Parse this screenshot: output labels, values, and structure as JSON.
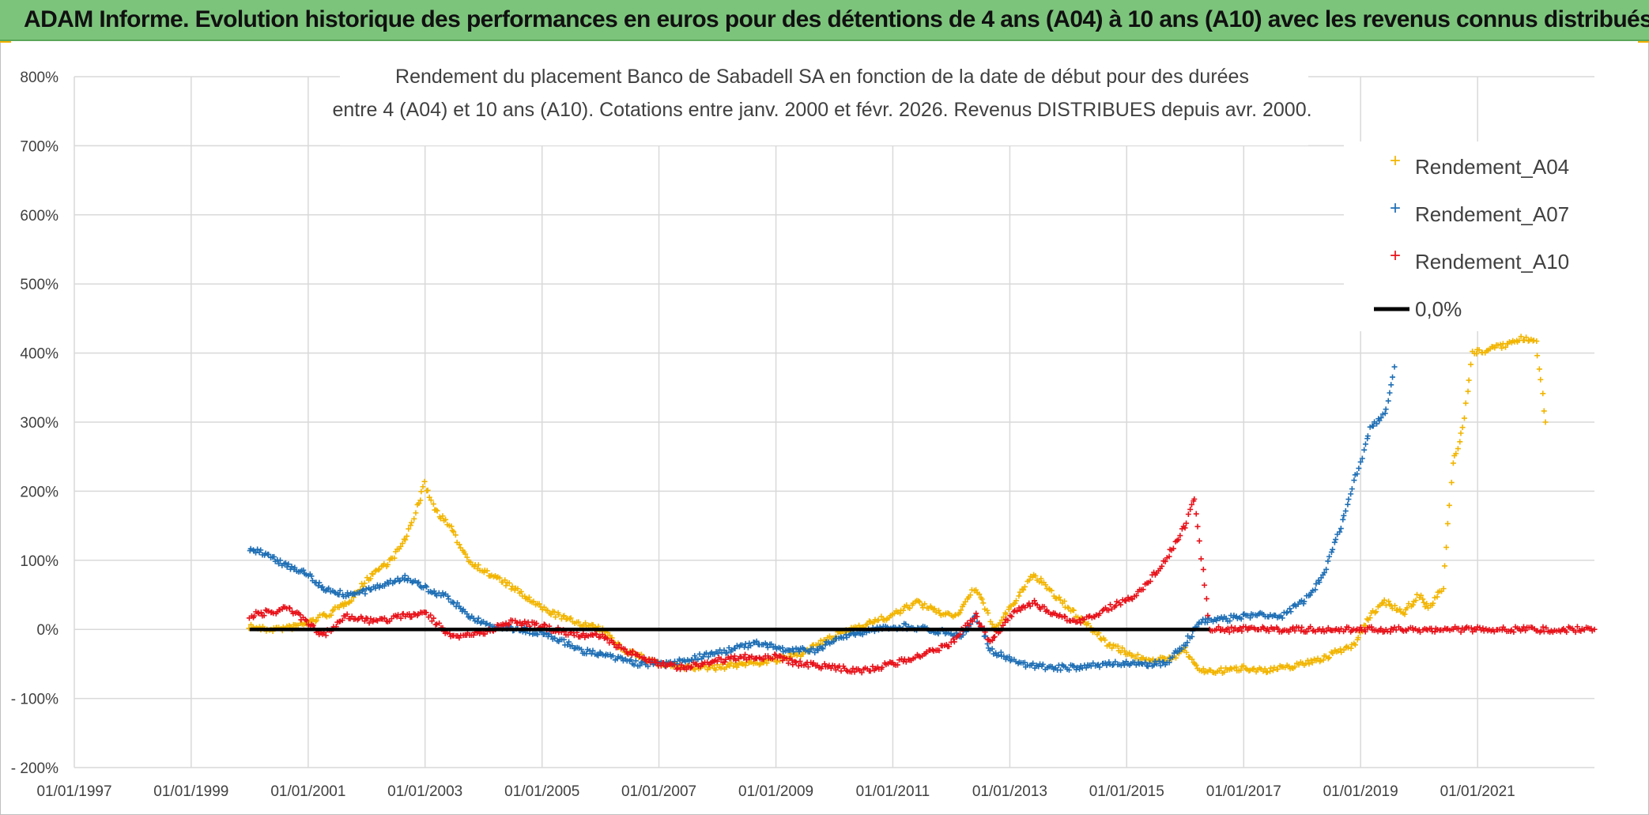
{
  "banner": {
    "text": "ADAM Informe. Evolution historique des performances en euros pour des détentions de 4 ans (A04) à 10 ans (A10) avec les revenus connus distribués"
  },
  "colors": {
    "banner_bg": "#7cc47c",
    "A04": "#f2b500",
    "A07": "#1f6fb5",
    "A10": "#e8131b",
    "zero_line": "#000000",
    "grid": "#d9d9d9"
  },
  "chart_data": {
    "type": "scatter",
    "title_lines": [
      "Rendement du placement Banco de Sabadell SA en fonction de la date de début pour des durées",
      "entre 4 (A04) et 10 ans (A10). Cotations entre janv. 2000 et févr. 2026. Revenus DISTRIBUES depuis avr. 2000."
    ],
    "x_axis": {
      "type": "date",
      "range": [
        "1997-01-01",
        "2023-01-01"
      ],
      "tick_labels": [
        "01/01/1997",
        "01/01/1999",
        "01/01/2001",
        "01/01/2003",
        "01/01/2005",
        "01/01/2007",
        "01/01/2009",
        "01/01/2011",
        "01/01/2013",
        "01/01/2015",
        "01/01/2017",
        "01/01/2019",
        "01/01/2021"
      ],
      "grid": true
    },
    "y_axis": {
      "range": [
        -200,
        800
      ],
      "unit": "%",
      "tick_labels": [
        "800%",
        "700%",
        "600%",
        "500%",
        "400%",
        "300%",
        "200%",
        "100%",
        "0%",
        "- 100%",
        "- 200%"
      ],
      "grid": true
    },
    "legend": {
      "position": "right",
      "entries": [
        "Rendement_A04",
        "Rendement_A07",
        "Rendement_A10",
        "0,0%"
      ]
    },
    "series": [
      {
        "name": "Rendement_A04",
        "marker": "+",
        "color": "#f2b500",
        "points": [
          [
            "2000-01-01",
            5
          ],
          [
            "2000-04-01",
            0
          ],
          [
            "2000-09-01",
            2
          ],
          [
            "2001-01-01",
            10
          ],
          [
            "2001-06-01",
            25
          ],
          [
            "2001-10-01",
            45
          ],
          [
            "2002-02-01",
            80
          ],
          [
            "2002-06-01",
            100
          ],
          [
            "2002-09-01",
            130
          ],
          [
            "2003-01-01",
            210
          ],
          [
            "2003-03-01",
            175
          ],
          [
            "2003-06-01",
            150
          ],
          [
            "2003-10-01",
            100
          ],
          [
            "2004-02-01",
            80
          ],
          [
            "2004-05-01",
            70
          ],
          [
            "2004-09-01",
            50
          ],
          [
            "2005-01-01",
            30
          ],
          [
            "2005-06-01",
            15
          ],
          [
            "2006-01-01",
            0
          ],
          [
            "2006-06-01",
            -30
          ],
          [
            "2007-01-01",
            -50
          ],
          [
            "2007-06-01",
            -55
          ],
          [
            "2008-01-01",
            -55
          ],
          [
            "2008-06-01",
            -50
          ],
          [
            "2009-01-01",
            -45
          ],
          [
            "2009-06-01",
            -35
          ],
          [
            "2010-01-01",
            -10
          ],
          [
            "2010-06-01",
            5
          ],
          [
            "2011-01-01",
            20
          ],
          [
            "2011-06-01",
            40
          ],
          [
            "2011-10-01",
            25
          ],
          [
            "2012-02-01",
            20
          ],
          [
            "2012-06-01",
            60
          ],
          [
            "2012-10-01",
            0
          ],
          [
            "2013-01-01",
            30
          ],
          [
            "2013-06-01",
            80
          ],
          [
            "2013-10-01",
            50
          ],
          [
            "2014-03-01",
            20
          ],
          [
            "2014-09-01",
            -20
          ],
          [
            "2015-03-01",
            -40
          ],
          [
            "2015-09-01",
            -45
          ],
          [
            "2016-01-01",
            -30
          ],
          [
            "2016-04-01",
            -60
          ],
          [
            "2016-09-01",
            -60
          ],
          [
            "2017-01-01",
            -55
          ],
          [
            "2017-06-01",
            -60
          ],
          [
            "2018-01-01",
            -50
          ],
          [
            "2018-06-01",
            -40
          ],
          [
            "2018-12-01",
            -20
          ],
          [
            "2019-03-01",
            20
          ],
          [
            "2019-06-01",
            40
          ],
          [
            "2019-10-01",
            25
          ],
          [
            "2020-01-01",
            50
          ],
          [
            "2020-03-01",
            30
          ],
          [
            "2020-06-01",
            60
          ],
          [
            "2020-08-01",
            240
          ],
          [
            "2020-10-01",
            290
          ],
          [
            "2020-12-01",
            400
          ],
          [
            "2021-06-01",
            410
          ],
          [
            "2021-10-01",
            420
          ],
          [
            "2022-01-01",
            420
          ],
          [
            "2022-03-01",
            300
          ]
        ]
      },
      {
        "name": "Rendement_A07",
        "marker": "+",
        "color": "#1f6fb5",
        "points": [
          [
            "2000-01-01",
            115
          ],
          [
            "2000-04-01",
            110
          ],
          [
            "2000-08-01",
            95
          ],
          [
            "2001-01-01",
            80
          ],
          [
            "2001-04-01",
            60
          ],
          [
            "2001-09-01",
            50
          ],
          [
            "2002-01-01",
            55
          ],
          [
            "2002-06-01",
            70
          ],
          [
            "2002-09-01",
            75
          ],
          [
            "2003-01-01",
            60
          ],
          [
            "2003-06-01",
            45
          ],
          [
            "2003-10-01",
            20
          ],
          [
            "2004-02-01",
            5
          ],
          [
            "2004-09-01",
            0
          ],
          [
            "2005-03-01",
            -10
          ],
          [
            "2005-09-01",
            -30
          ],
          [
            "2006-03-01",
            -40
          ],
          [
            "2006-09-01",
            -50
          ],
          [
            "2007-03-01",
            -50
          ],
          [
            "2007-09-01",
            -40
          ],
          [
            "2008-03-01",
            -30
          ],
          [
            "2008-09-01",
            -20
          ],
          [
            "2009-03-01",
            -30
          ],
          [
            "2009-09-01",
            -30
          ],
          [
            "2010-03-01",
            -10
          ],
          [
            "2010-09-01",
            0
          ],
          [
            "2011-03-01",
            5
          ],
          [
            "2011-09-01",
            0
          ],
          [
            "2012-03-01",
            -10
          ],
          [
            "2012-06-01",
            20
          ],
          [
            "2012-09-01",
            -30
          ],
          [
            "2013-03-01",
            -50
          ],
          [
            "2013-09-01",
            -55
          ],
          [
            "2014-03-01",
            -55
          ],
          [
            "2014-09-01",
            -50
          ],
          [
            "2015-03-01",
            -50
          ],
          [
            "2015-09-01",
            -50
          ],
          [
            "2016-01-01",
            -20
          ],
          [
            "2016-04-01",
            10
          ],
          [
            "2016-09-01",
            15
          ],
          [
            "2017-03-01",
            20
          ],
          [
            "2017-09-01",
            20
          ],
          [
            "2018-03-01",
            50
          ],
          [
            "2018-06-01",
            90
          ],
          [
            "2018-09-01",
            150
          ],
          [
            "2018-12-01",
            220
          ],
          [
            "2019-03-01",
            290
          ],
          [
            "2019-06-01",
            310
          ],
          [
            "2019-08-01",
            380
          ]
        ]
      },
      {
        "name": "Rendement_A10",
        "marker": "+",
        "color": "#e8131b",
        "points": [
          [
            "2000-01-01",
            20
          ],
          [
            "2000-05-01",
            25
          ],
          [
            "2000-09-01",
            30
          ],
          [
            "2001-01-01",
            10
          ],
          [
            "2001-04-01",
            -10
          ],
          [
            "2001-09-01",
            20
          ],
          [
            "2002-03-01",
            10
          ],
          [
            "2002-09-01",
            20
          ],
          [
            "2003-01-01",
            25
          ],
          [
            "2003-06-01",
            -10
          ],
          [
            "2004-01-01",
            -5
          ],
          [
            "2004-06-01",
            10
          ],
          [
            "2005-01-01",
            5
          ],
          [
            "2005-06-01",
            -5
          ],
          [
            "2006-01-01",
            -10
          ],
          [
            "2006-06-01",
            -30
          ],
          [
            "2007-01-01",
            -50
          ],
          [
            "2007-06-01",
            -55
          ],
          [
            "2008-01-01",
            -45
          ],
          [
            "2008-06-01",
            -40
          ],
          [
            "2009-01-01",
            -40
          ],
          [
            "2009-06-01",
            -50
          ],
          [
            "2010-01-01",
            -55
          ],
          [
            "2010-06-01",
            -60
          ],
          [
            "2011-01-01",
            -50
          ],
          [
            "2011-06-01",
            -40
          ],
          [
            "2012-01-01",
            -20
          ],
          [
            "2012-06-01",
            20
          ],
          [
            "2012-09-01",
            -20
          ],
          [
            "2013-01-01",
            20
          ],
          [
            "2013-06-01",
            40
          ],
          [
            "2013-10-01",
            20
          ],
          [
            "2014-03-01",
            10
          ],
          [
            "2014-09-01",
            30
          ],
          [
            "2015-03-01",
            50
          ],
          [
            "2015-09-01",
            100
          ],
          [
            "2016-01-01",
            150
          ],
          [
            "2016-03-01",
            190
          ],
          [
            "2016-06-01",
            0
          ],
          [
            "2017-01-01",
            0
          ],
          [
            "2018-01-01",
            0
          ],
          [
            "2019-01-01",
            0
          ],
          [
            "2020-01-01",
            0
          ],
          [
            "2021-01-01",
            0
          ],
          [
            "2022-01-01",
            0
          ],
          [
            "2023-01-01",
            0
          ]
        ]
      },
      {
        "name": "0,0%",
        "type": "line",
        "color": "#000000",
        "points": [
          [
            "2000-01-01",
            0
          ],
          [
            "2016-06-01",
            0
          ]
        ]
      }
    ]
  }
}
